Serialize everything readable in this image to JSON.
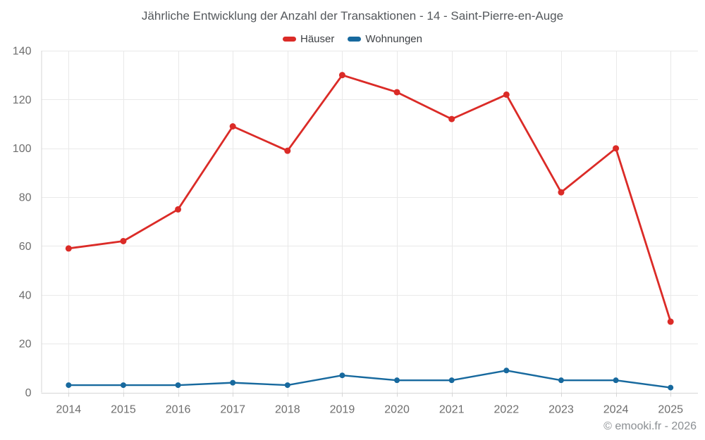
{
  "footer": "© emooki.fr - 2026",
  "colors": {
    "background": "#ffffff",
    "grid": "#e9e9e9",
    "axis": "#d6d6d6",
    "tick_label": "#6e6e6e",
    "title_text": "#54585c",
    "legend_text": "#3e4145",
    "footer_text": "#8b8f93",
    "hauser_red": "#db2b27",
    "wohnungen_blue": "#17699e"
  },
  "chart_data": {
    "type": "line",
    "title": "Jährliche Entwicklung der Anzahl der Transaktionen - 14 - Saint-Pierre-en-Auge",
    "x": [
      2014,
      2015,
      2016,
      2017,
      2018,
      2019,
      2020,
      2021,
      2022,
      2023,
      2024,
      2025
    ],
    "series": [
      {
        "name": "Häuser",
        "color": "#db2b27",
        "line_width": 2.8,
        "marker_radius": 4.5,
        "values": [
          59,
          62,
          75,
          109,
          99,
          130,
          123,
          112,
          122,
          82,
          100,
          29
        ]
      },
      {
        "name": "Wohnungen",
        "color": "#17699e",
        "line_width": 2.4,
        "marker_radius": 4,
        "values": [
          3,
          3,
          3,
          4,
          3,
          7,
          5,
          5,
          9,
          5,
          5,
          2
        ]
      }
    ],
    "xlabel": "",
    "ylabel": "",
    "ylim": [
      0,
      140
    ],
    "yticks": [
      0,
      20,
      40,
      60,
      80,
      100,
      120,
      140
    ],
    "grid": true,
    "legend_position": "top"
  }
}
